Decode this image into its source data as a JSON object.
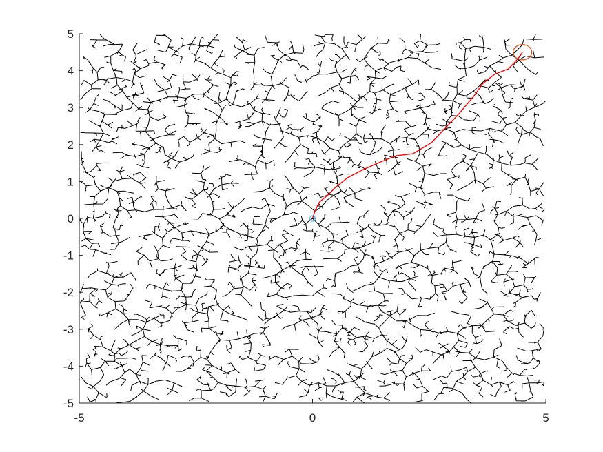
{
  "chart_data": {
    "type": "line",
    "title": "",
    "xlabel": "",
    "ylabel": "",
    "xlim": [
      -5,
      5
    ],
    "ylim": [
      -5,
      5
    ],
    "x_ticks": [
      -5,
      0,
      5
    ],
    "y_ticks": [
      5,
      4,
      3,
      2,
      1,
      0,
      -1,
      -2,
      -3,
      -4,
      -5
    ],
    "x_tick_labels": [
      "-5",
      "0",
      "5"
    ],
    "y_tick_labels": [
      "5",
      "4",
      "3",
      "2",
      "1",
      "0",
      "-1",
      "-2",
      "-3",
      "-4",
      "-5"
    ],
    "grid": false,
    "legend": "none",
    "start": {
      "x": 0,
      "y": 0,
      "color": "#4DBEEE"
    },
    "goal": {
      "x": 4.5,
      "y": 4.5,
      "radius": 0.2,
      "color": "#D95319"
    },
    "series": [
      {
        "role": "tree",
        "color": "#000000",
        "description_points": "random tree edges rooted at start, filling the domain"
      },
      {
        "role": "path",
        "color": "#FF0000",
        "points": [
          [
            0.0,
            0.0
          ],
          [
            0.05,
            0.2
          ],
          [
            0.15,
            0.45
          ],
          [
            0.3,
            0.6
          ],
          [
            0.5,
            0.85
          ],
          [
            0.75,
            1.1
          ],
          [
            1.05,
            1.3
          ],
          [
            1.4,
            1.5
          ],
          [
            1.8,
            1.7
          ],
          [
            2.15,
            1.75
          ],
          [
            2.55,
            2.05
          ],
          [
            2.85,
            2.45
          ],
          [
            3.15,
            2.85
          ],
          [
            3.45,
            3.3
          ],
          [
            3.65,
            3.65
          ],
          [
            3.9,
            3.9
          ],
          [
            4.2,
            4.05
          ],
          [
            4.35,
            4.25
          ],
          [
            4.45,
            4.4
          ],
          [
            4.5,
            4.5
          ]
        ]
      }
    ],
    "colors": {
      "axis": "#262626",
      "tree": "#000000",
      "path": "#FF0000",
      "start": "#4DBEEE",
      "goal": "#D95319"
    }
  }
}
